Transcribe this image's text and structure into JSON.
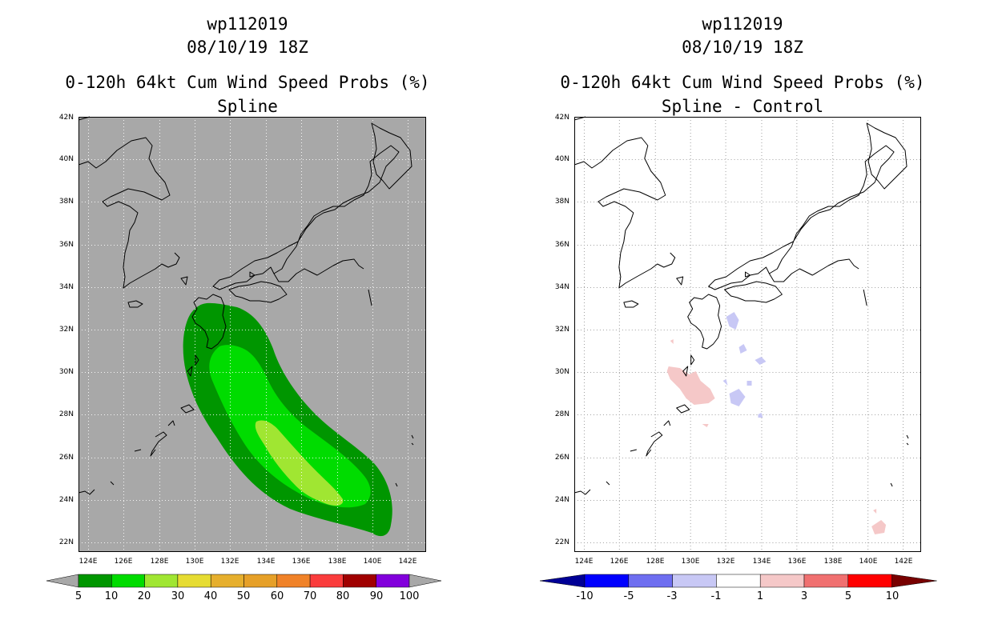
{
  "panels": [
    {
      "id": "left",
      "storm_id": "wp112019",
      "datetime": "08/10/19 18Z",
      "product": "0-120h 64kt Cum Wind Speed Probs (%)",
      "subtitle": "Spline",
      "background": "#a8a8a8",
      "colorbar": {
        "labels": [
          "5",
          "10",
          "20",
          "30",
          "40",
          "50",
          "60",
          "70",
          "80",
          "90",
          "100"
        ],
        "colors": [
          "#009600",
          "#00dc00",
          "#a0e632",
          "#e6dc32",
          "#e6af2d",
          "#e6a028",
          "#f08228",
          "#fa3c3c",
          "#a00000",
          "#8200dc"
        ],
        "end_colors": [
          "#a8a8a8",
          "#a8a8a8"
        ]
      }
    },
    {
      "id": "right",
      "storm_id": "wp112019",
      "datetime": "08/10/19 18Z",
      "product": "0-120h 64kt Cum Wind Speed Probs (%)",
      "subtitle": "Spline - Control",
      "background": "#ffffff",
      "colorbar": {
        "labels": [
          "-10",
          "-5",
          "-3",
          "-1",
          "1",
          "3",
          "5",
          "10"
        ],
        "colors": [
          "#0000ff",
          "#6e6ef0",
          "#c8c8f5",
          "#ffffff",
          "#f5c8c8",
          "#f07070",
          "#ff0000"
        ],
        "end_colors": [
          "#000096",
          "#780000"
        ]
      }
    }
  ],
  "axes": {
    "lat_labels": [
      "42N",
      "40N",
      "38N",
      "36N",
      "34N",
      "32N",
      "30N",
      "28N",
      "26N",
      "24N",
      "22N"
    ],
    "lon_labels": [
      "124E",
      "126E",
      "128E",
      "130E",
      "132E",
      "134E",
      "136E",
      "138E",
      "140E",
      "142E"
    ]
  },
  "probability_contours": [
    {
      "level": "5-10",
      "color": "#009600",
      "region": "Kyushu south-east toward 140E 23N"
    },
    {
      "level": "10-20",
      "color": "#00dc00",
      "region": "core swath"
    },
    {
      "level": "20-30",
      "color": "#a0e632",
      "region": "26N-24N near 135E-138E"
    }
  ],
  "difference_areas": [
    {
      "sign": "positive",
      "color": "#f5c8c8",
      "region": "near 130E-131E 29N-30N"
    },
    {
      "sign": "negative",
      "color": "#c8c8f5",
      "region": "near 132E-134E 29N-32N"
    },
    {
      "sign": "positive",
      "color": "#f5c8c8",
      "region": "near 140.5E 23N"
    }
  ]
}
